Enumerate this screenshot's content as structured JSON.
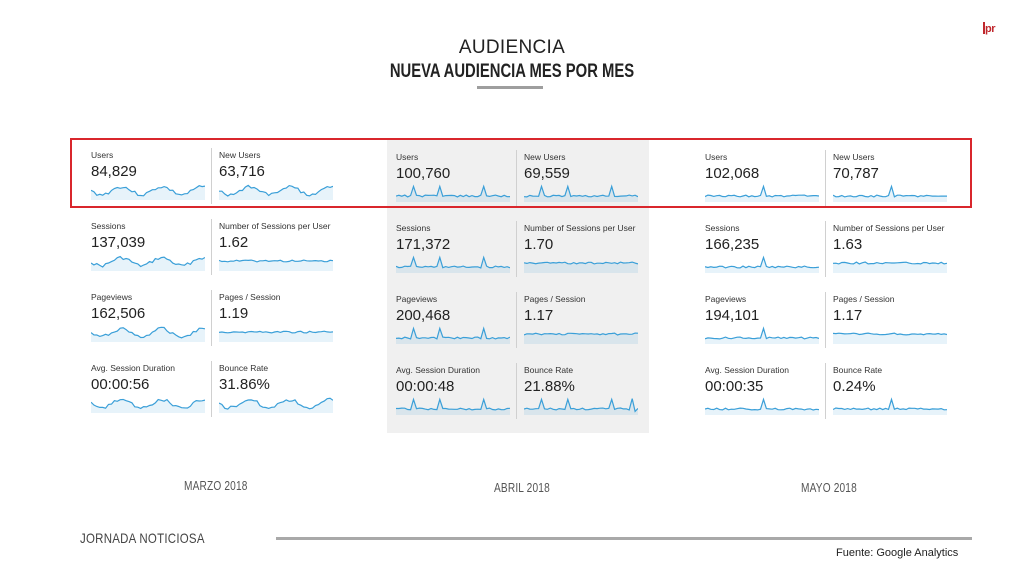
{
  "logo_text": "pr",
  "header": {
    "title": "AUDIENCIA",
    "subtitle": "NUEVA AUDIENCIA MES POR MES"
  },
  "months": [
    {
      "name": "MARZO 2018",
      "metrics": [
        {
          "label": "Users",
          "value": "84,829"
        },
        {
          "label": "New Users",
          "value": "63,716"
        },
        {
          "label": "Sessions",
          "value": "137,039"
        },
        {
          "label": "Number of Sessions per User",
          "value": "1.62"
        },
        {
          "label": "Pageviews",
          "value": "162,506"
        },
        {
          "label": "Pages / Session",
          "value": "1.19"
        },
        {
          "label": "Avg. Session Duration",
          "value": "00:00:56"
        },
        {
          "label": "Bounce Rate",
          "value": "31.86%"
        }
      ]
    },
    {
      "name": "ABRIL 2018",
      "metrics": [
        {
          "label": "Users",
          "value": "100,760"
        },
        {
          "label": "New Users",
          "value": "69,559"
        },
        {
          "label": "Sessions",
          "value": "171,372"
        },
        {
          "label": "Number of Sessions per User",
          "value": "1.70"
        },
        {
          "label": "Pageviews",
          "value": "200,468"
        },
        {
          "label": "Pages / Session",
          "value": "1.17"
        },
        {
          "label": "Avg. Session Duration",
          "value": "00:00:48"
        },
        {
          "label": "Bounce Rate",
          "value": "21.88%"
        }
      ]
    },
    {
      "name": "MAYO 2018",
      "metrics": [
        {
          "label": "Users",
          "value": "102,068"
        },
        {
          "label": "New Users",
          "value": "70,787"
        },
        {
          "label": "Sessions",
          "value": "166,235"
        },
        {
          "label": "Number of Sessions per User",
          "value": "1.63"
        },
        {
          "label": "Pageviews",
          "value": "194,101"
        },
        {
          "label": "Pages / Session",
          "value": "1.17"
        },
        {
          "label": "Avg. Session Duration",
          "value": "00:00:35"
        },
        {
          "label": "Bounce Rate",
          "value": "0.24%"
        }
      ]
    }
  ],
  "footer": {
    "left": "JORNADA NOTICIOSA",
    "source": "Fuente: Google Analytics"
  },
  "colors": {
    "sparkline": "#3a9fd8",
    "highlight": "#d9262c"
  }
}
